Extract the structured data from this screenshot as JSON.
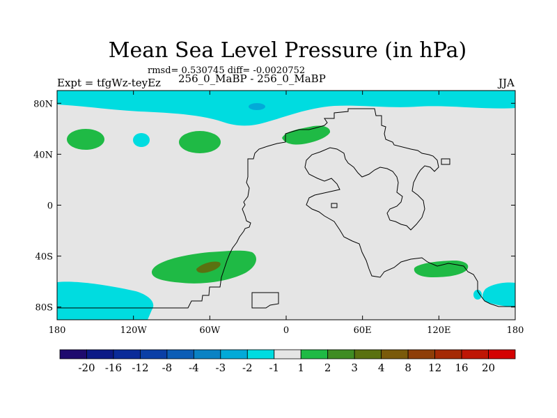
{
  "title": "Mean Sea Level Pressure (in hPa)",
  "stats_text": "rmsd= 0.530745 diff= -0.0020752",
  "left_label": "Expt = tfgWz-teyEz",
  "center_label": "256_0_MaBP - 256_0_MaBP",
  "right_label": "JJA",
  "chart_data": {
    "type": "heatmap",
    "title": "Mean Sea Level Pressure (in hPa)",
    "units": "hPa",
    "xlim": [
      -180,
      180
    ],
    "ylim": [
      -90,
      90
    ],
    "x_ticks": [
      {
        "value": -180,
        "label": "180"
      },
      {
        "value": -120,
        "label": "120W"
      },
      {
        "value": -60,
        "label": "60W"
      },
      {
        "value": 0,
        "label": "0"
      },
      {
        "value": 60,
        "label": "60E"
      },
      {
        "value": 120,
        "label": "120E"
      },
      {
        "value": 180,
        "label": "180"
      }
    ],
    "y_ticks": [
      {
        "value": 80,
        "label": "80N"
      },
      {
        "value": 40,
        "label": "40N"
      },
      {
        "value": 0,
        "label": "0"
      },
      {
        "value": -40,
        "label": "40S"
      },
      {
        "value": -80,
        "label": "80S"
      }
    ],
    "colorbar": {
      "labels": [
        "-20",
        "-16",
        "-12",
        "-8",
        "-4",
        "-3",
        "-2",
        "-1",
        "1",
        "2",
        "3",
        "4",
        "8",
        "12",
        "16",
        "20"
      ],
      "colors": [
        "#1e0a6e",
        "#0c1a86",
        "#0a2b99",
        "#0b3fa6",
        "#0c5db6",
        "#0a82c4",
        "#02aad8",
        "#00dce0",
        "#e5e5e5",
        "#1fba45",
        "#3f8c23",
        "#5a7110",
        "#7a5a0a",
        "#8e3e08",
        "#a52a05",
        "#be1605",
        "#d40202"
      ]
    },
    "features": [
      {
        "name": "arctic-negative-band",
        "level": "-2 to -1",
        "lon": [
          -180,
          180
        ],
        "lat": [
          68,
          90
        ]
      },
      {
        "name": "arctic-core",
        "level": "-3 to -2",
        "lon": [
          -33,
          -26
        ],
        "lat": [
          78,
          82
        ]
      },
      {
        "name": "antarctic-negative-west",
        "level": "-2 to -1",
        "lon": [
          -180,
          -105
        ],
        "lat": [
          -90,
          -60
        ]
      },
      {
        "name": "antarctic-negative-east",
        "level": "-2 to -1",
        "lon": [
          150,
          180
        ],
        "lat": [
          -78,
          -60
        ]
      },
      {
        "name": "north-pacific-spot",
        "level": "-2 to -1",
        "lon": [
          -122,
          -108
        ],
        "lat": [
          45,
          52
        ]
      },
      {
        "name": "north-pacific-positive-west",
        "level": "1 to 2",
        "lon": [
          -175,
          -145
        ],
        "lat": [
          43,
          59
        ]
      },
      {
        "name": "north-pacific-positive-east",
        "level": "1 to 2",
        "lon": [
          -85,
          -52
        ],
        "lat": [
          40,
          58
        ]
      },
      {
        "name": "europe-positive",
        "level": "1 to 2",
        "lon": [
          -5,
          35
        ],
        "lat": [
          48,
          63
        ]
      },
      {
        "name": "south-atlantic-positive",
        "level": "1 to 2",
        "lon": [
          -105,
          -15
        ],
        "lat": [
          -63,
          -35
        ]
      },
      {
        "name": "south-atlantic-core",
        "level": "2 to 3",
        "lon": [
          -70,
          -50
        ],
        "lat": [
          -52,
          -44
        ]
      },
      {
        "name": "indian-ocean-positive",
        "level": "1 to 2",
        "lon": [
          100,
          145
        ],
        "lat": [
          -57,
          -45
        ]
      }
    ]
  }
}
